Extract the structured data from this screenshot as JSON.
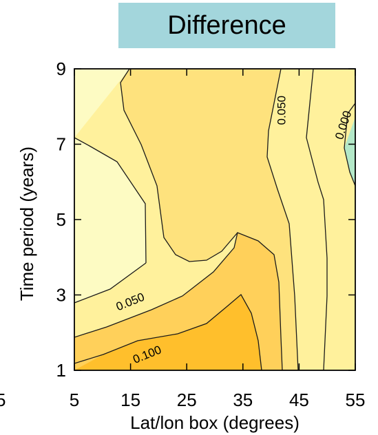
{
  "chart_data": {
    "type": "contour",
    "title": "Difference",
    "xlabel": "Lat/lon box (degrees)",
    "ylabel": "Time period (years)",
    "x_ticks": [
      5,
      15,
      25,
      35,
      45,
      55
    ],
    "y_ticks": [
      1,
      3,
      5,
      7,
      9
    ],
    "partial_left_tick": "5",
    "xlim": [
      5,
      55
    ],
    "ylim": [
      1,
      9
    ],
    "contour_levels": [
      0.0,
      0.025,
      0.05,
      0.075,
      0.1
    ],
    "labeled_contours": [
      {
        "text": "0.050",
        "x": 15,
        "y": 2.8
      },
      {
        "text": "0.100",
        "x": 18,
        "y": 1.4
      },
      {
        "text": "0.050",
        "x": 42,
        "y": 7.9
      },
      {
        "text": "0.000",
        "x": 53,
        "y": 7.5
      }
    ],
    "colors": {
      "below_0.000": "#b3e8c8",
      "0.000_0.025": "#fdfbc3",
      "0.025_0.050": "#fff19c",
      "0.050_0.075": "#fee27d",
      "0.075_0.100": "#ffd05a",
      "above_0.100": "#ffbf2c",
      "title_background": "#a3d6dc"
    }
  }
}
